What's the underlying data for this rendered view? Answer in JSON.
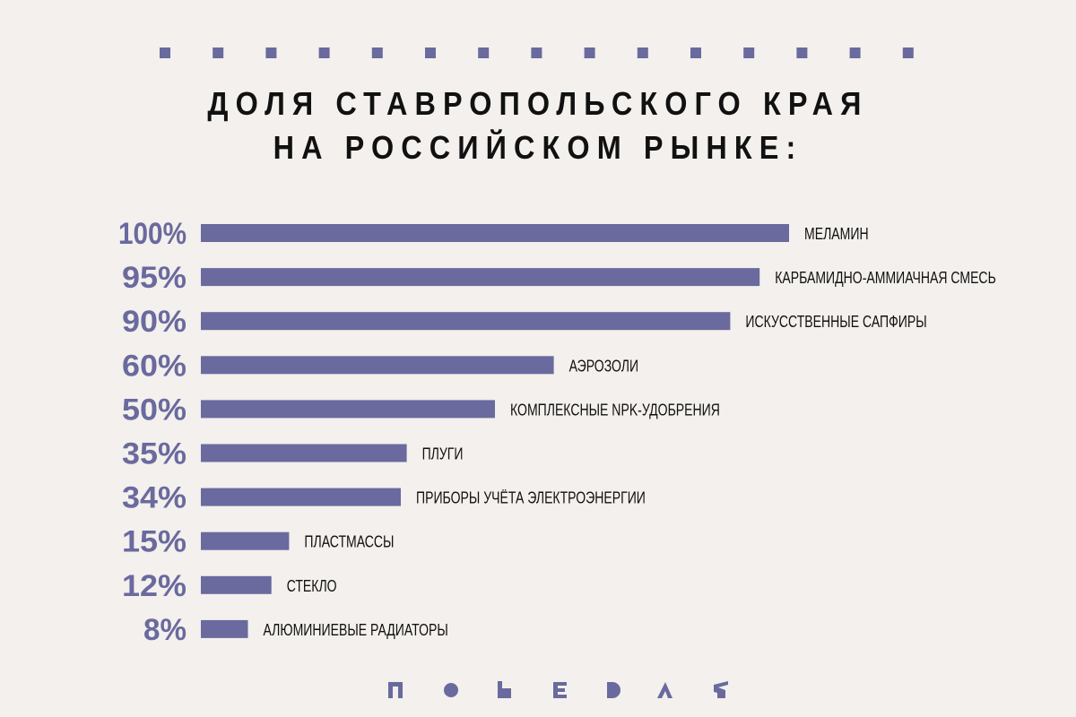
{
  "title_lines": [
    "ДОЛЯ СТАВРОПОЛЬСКОГО КРАЯ",
    "НА РОССИЙСКОМ РЫНКЕ:"
  ],
  "colors": {
    "background": "#f3f0ed",
    "bar": "#6a6a9e",
    "pct_label": "#6a6a9e",
    "text": "#111111"
  },
  "chart_data": {
    "type": "bar",
    "orientation": "horizontal",
    "title": "ДОЛЯ СТАВРОПОЛЬСКОГО КРАЯ НА РОССИЙСКОМ РЫНКЕ:",
    "categories": [
      "МЕЛАМИН",
      "КАРБАМИДНО-АММИАЧНАЯ СМЕСЬ",
      "ИСКУССТВЕННЫЕ САПФИРЫ",
      "АЭРОЗОЛИ",
      "КОМПЛЕКСНЫЕ NPK-УДОБРЕНИЯ",
      "ПЛУГИ",
      "ПРИБОРЫ УЧЁТА ЭЛЕКТРОЭНЕРГИИ",
      "ПЛАСТМАССЫ",
      "СТЕКЛО",
      "АЛЮМИНИЕВЫЕ РАДИАТОРЫ"
    ],
    "value_labels": [
      "100%",
      "95%",
      "90%",
      "60%",
      "50%",
      "35%",
      "34%",
      "15%",
      "12%",
      "8%"
    ],
    "values": [
      100,
      95,
      90,
      60,
      50,
      35,
      34,
      15,
      12,
      8
    ],
    "xlim": [
      0,
      100
    ],
    "grid": false,
    "legend": "none"
  }
}
